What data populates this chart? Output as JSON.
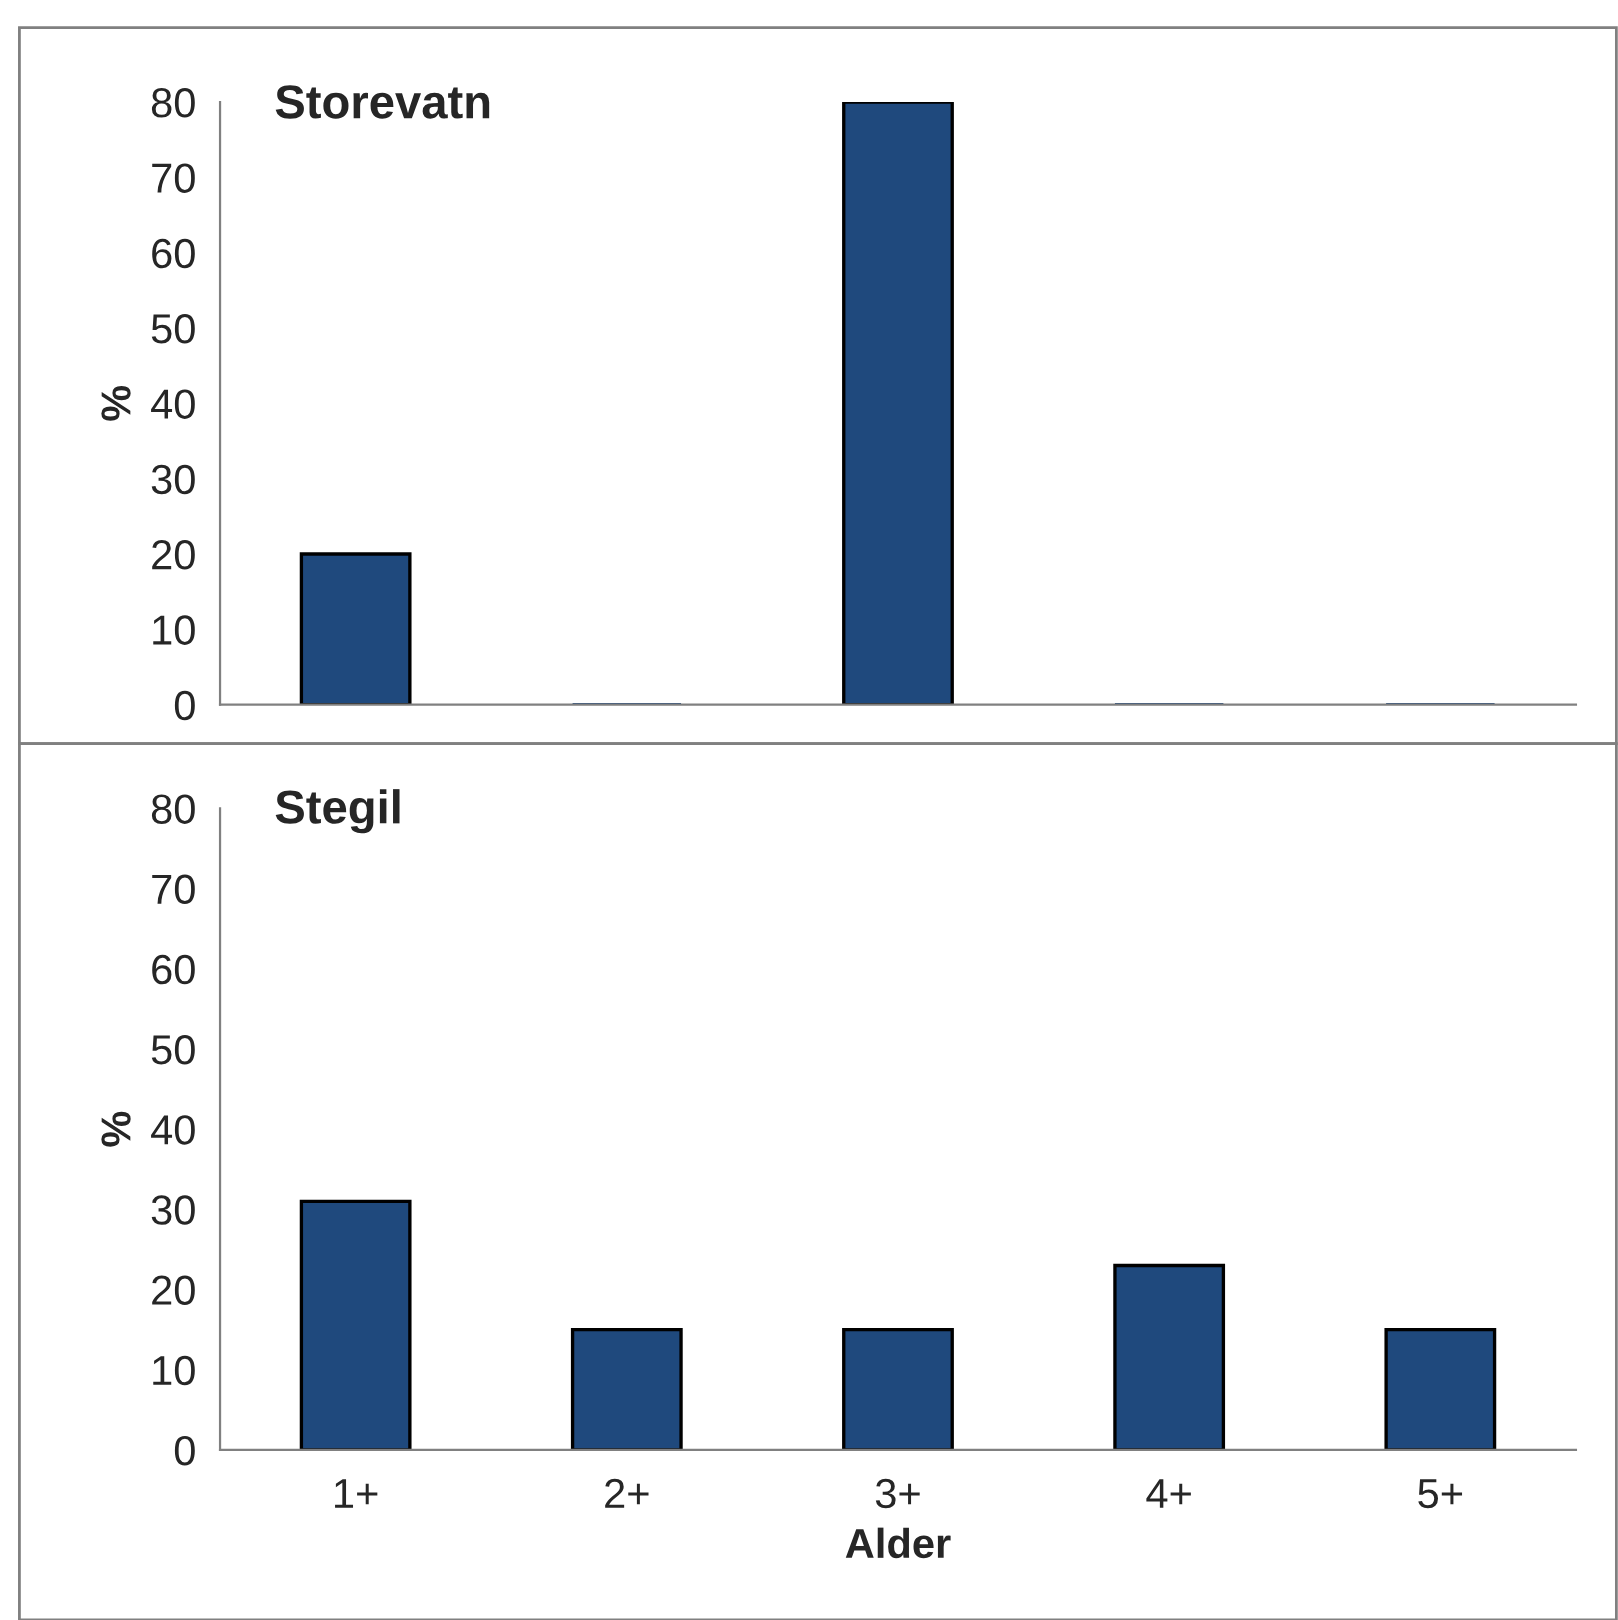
{
  "chart_data": [
    {
      "type": "bar",
      "title": "Storevatn",
      "ylabel": "%",
      "categories": [
        null,
        null,
        null,
        null,
        null
      ],
      "values": [
        20,
        0,
        80,
        0,
        0
      ],
      "color": "#1f497d",
      "ylim": [
        0,
        80
      ],
      "yticks": [
        0,
        10,
        20,
        30,
        40,
        50,
        60,
        70,
        80
      ],
      "tick_labels": "y",
      "grid": false,
      "legend": false
    },
    {
      "type": "bar",
      "title": "Stegil",
      "ylabel": "%",
      "xlabel": "Alder",
      "categories": [
        "1+",
        "2+",
        "3+",
        "4+",
        "5+"
      ],
      "values": [
        31,
        15,
        15,
        23,
        15
      ],
      "color": "#1f497d",
      "ylim": [
        0,
        80
      ],
      "yticks": [
        0,
        10,
        20,
        30,
        40,
        50,
        60,
        70,
        80
      ],
      "grid": false,
      "legend": false
    }
  ]
}
